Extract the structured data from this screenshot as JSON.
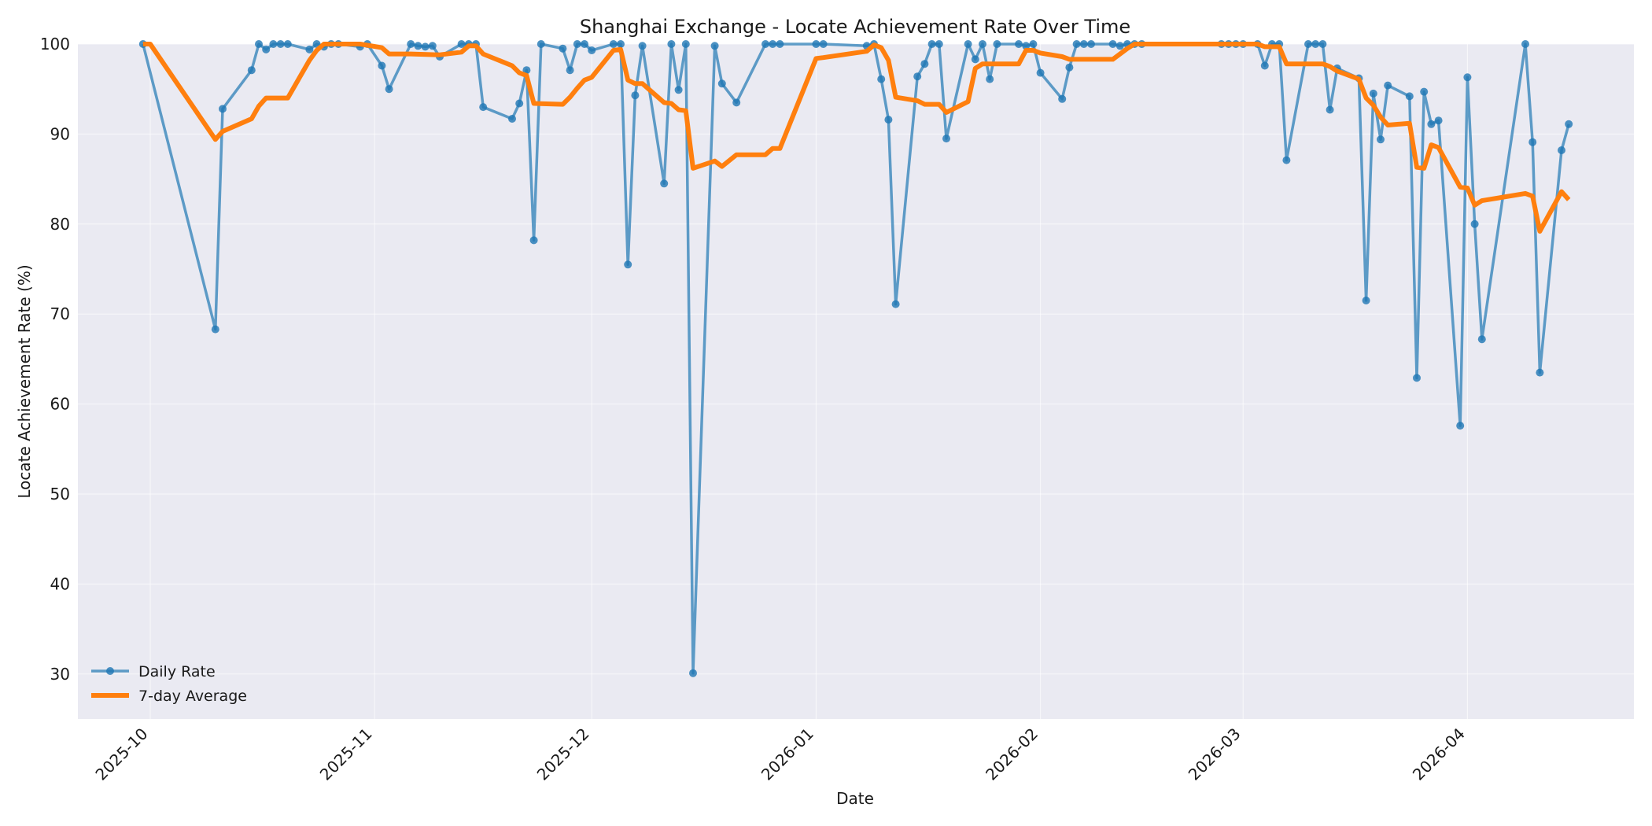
{
  "chart_data": {
    "type": "line",
    "title": "Shanghai Exchange - Locate Achievement Rate Over Time",
    "xlabel": "Date",
    "ylabel": "Locate Achievement Rate (%)",
    "xlim": [
      "2025-09-21",
      "2026-04-24"
    ],
    "ylim": [
      25,
      100
    ],
    "yticks": [
      30,
      40,
      50,
      60,
      70,
      80,
      90,
      100
    ],
    "xticks": [
      "2025-10-01",
      "2025-11-01",
      "2025-12-01",
      "2026-01-01",
      "2026-02-01",
      "2026-03-01",
      "2026-04-01"
    ],
    "xtick_labels": [
      "2025-10",
      "2025-11",
      "2025-12",
      "2026-01",
      "2026-02",
      "2026-03",
      "2026-04"
    ],
    "grid": true,
    "legend": "lower-left",
    "colors": {
      "daily": "#1f77b4",
      "avg": "#ff7f0e",
      "plot_bg": "#eaeaf2"
    },
    "series": [
      {
        "name": "Daily Rate",
        "marker": "circle",
        "points": [
          [
            "2025-09-30",
            100
          ],
          [
            "2025-10-10",
            68.3
          ],
          [
            "2025-10-11",
            92.8
          ],
          [
            "2025-10-15",
            97.1
          ],
          [
            "2025-10-16",
            100
          ],
          [
            "2025-10-17",
            99.4
          ],
          [
            "2025-10-18",
            100
          ],
          [
            "2025-10-19",
            100
          ],
          [
            "2025-10-20",
            100
          ],
          [
            "2025-10-23",
            99.4
          ],
          [
            "2025-10-24",
            100
          ],
          [
            "2025-10-25",
            99.7
          ],
          [
            "2025-10-26",
            100
          ],
          [
            "2025-10-27",
            100
          ],
          [
            "2025-10-30",
            99.7
          ],
          [
            "2025-10-31",
            100
          ],
          [
            "2025-11-02",
            97.6
          ],
          [
            "2025-11-03",
            95.0
          ],
          [
            "2025-11-06",
            100
          ],
          [
            "2025-11-07",
            99.8
          ],
          [
            "2025-11-08",
            99.7
          ],
          [
            "2025-11-09",
            99.8
          ],
          [
            "2025-11-10",
            98.6
          ],
          [
            "2025-11-13",
            100
          ],
          [
            "2025-11-14",
            100
          ],
          [
            "2025-11-15",
            100
          ],
          [
            "2025-11-16",
            93.0
          ],
          [
            "2025-11-20",
            91.7
          ],
          [
            "2025-11-21",
            93.4
          ],
          [
            "2025-11-22",
            97.1
          ],
          [
            "2025-11-23",
            78.2
          ],
          [
            "2025-11-24",
            100
          ],
          [
            "2025-11-27",
            99.5
          ],
          [
            "2025-11-28",
            97.1
          ],
          [
            "2025-11-29",
            100
          ],
          [
            "2025-11-30",
            100
          ],
          [
            "2025-12-01",
            99.3
          ],
          [
            "2025-12-04",
            100
          ],
          [
            "2025-12-05",
            100
          ],
          [
            "2025-12-06",
            75.5
          ],
          [
            "2025-12-07",
            94.3
          ],
          [
            "2025-12-08",
            99.8
          ],
          [
            "2025-12-11",
            84.5
          ],
          [
            "2025-12-12",
            100
          ],
          [
            "2025-12-13",
            94.9
          ],
          [
            "2025-12-14",
            100
          ],
          [
            "2025-12-15",
            30.1
          ],
          [
            "2025-12-18",
            99.8
          ],
          [
            "2025-12-19",
            95.6
          ],
          [
            "2025-12-21",
            93.5
          ],
          [
            "2025-12-25",
            100
          ],
          [
            "2025-12-26",
            100
          ],
          [
            "2025-12-27",
            100
          ],
          [
            "2026-01-01",
            100
          ],
          [
            "2026-01-02",
            100
          ],
          [
            "2026-01-08",
            99.8
          ],
          [
            "2026-01-09",
            100
          ],
          [
            "2026-01-10",
            96.1
          ],
          [
            "2026-01-11",
            91.6
          ],
          [
            "2026-01-12",
            71.1
          ],
          [
            "2026-01-15",
            96.4
          ],
          [
            "2026-01-16",
            97.8
          ],
          [
            "2026-01-17",
            100
          ],
          [
            "2026-01-18",
            100
          ],
          [
            "2026-01-19",
            89.5
          ],
          [
            "2026-01-22",
            100
          ],
          [
            "2026-01-23",
            98.3
          ],
          [
            "2026-01-24",
            100
          ],
          [
            "2026-01-25",
            96.1
          ],
          [
            "2026-01-26",
            100
          ],
          [
            "2026-01-29",
            100
          ],
          [
            "2026-01-30",
            99.8
          ],
          [
            "2026-01-31",
            100
          ],
          [
            "2026-02-01",
            96.8
          ],
          [
            "2026-02-04",
            93.9
          ],
          [
            "2026-02-05",
            97.4
          ],
          [
            "2026-02-06",
            100
          ],
          [
            "2026-02-07",
            100
          ],
          [
            "2026-02-08",
            100
          ],
          [
            "2026-02-11",
            100
          ],
          [
            "2026-02-12",
            99.8
          ],
          [
            "2026-02-13",
            100
          ],
          [
            "2026-02-14",
            100
          ],
          [
            "2026-02-15",
            100
          ],
          [
            "2026-02-26",
            100
          ],
          [
            "2026-02-27",
            100
          ],
          [
            "2026-02-28",
            100
          ],
          [
            "2026-03-01",
            100
          ],
          [
            "2026-03-03",
            100
          ],
          [
            "2026-03-04",
            97.6
          ],
          [
            "2026-03-05",
            100
          ],
          [
            "2026-03-06",
            100
          ],
          [
            "2026-03-07",
            87.1
          ],
          [
            "2026-03-10",
            100
          ],
          [
            "2026-03-11",
            100
          ],
          [
            "2026-03-12",
            100
          ],
          [
            "2026-03-13",
            92.7
          ],
          [
            "2026-03-14",
            97.3
          ],
          [
            "2026-03-17",
            96.2
          ],
          [
            "2026-03-18",
            71.5
          ],
          [
            "2026-03-19",
            94.5
          ],
          [
            "2026-03-20",
            89.4
          ],
          [
            "2026-03-21",
            95.4
          ],
          [
            "2026-03-24",
            94.2
          ],
          [
            "2026-03-25",
            62.9
          ],
          [
            "2026-03-26",
            94.7
          ],
          [
            "2026-03-27",
            91.1
          ],
          [
            "2026-03-28",
            91.5
          ],
          [
            "2026-03-31",
            57.6
          ],
          [
            "2026-04-01",
            96.3
          ],
          [
            "2026-04-02",
            80.0
          ],
          [
            "2026-04-03",
            67.2
          ],
          [
            "2026-04-09",
            100
          ],
          [
            "2026-04-10",
            89.1
          ],
          [
            "2026-04-11",
            63.5
          ],
          [
            "2026-04-14",
            88.2
          ],
          [
            "2026-04-15",
            91.1
          ]
        ]
      },
      {
        "name": "7-day Average",
        "points": [
          [
            "2025-09-30",
            100
          ],
          [
            "2025-10-01",
            100
          ],
          [
            "2025-10-10",
            89.4
          ],
          [
            "2025-10-11",
            90.3
          ],
          [
            "2025-10-15",
            91.7
          ],
          [
            "2025-10-16",
            93.1
          ],
          [
            "2025-10-17",
            94.0
          ],
          [
            "2025-10-19",
            94.0
          ],
          [
            "2025-10-20",
            94.0
          ],
          [
            "2025-10-23",
            98.2
          ],
          [
            "2025-10-24",
            99.3
          ],
          [
            "2025-10-25",
            100
          ],
          [
            "2025-10-30",
            100
          ],
          [
            "2025-11-02",
            99.6
          ],
          [
            "2025-11-03",
            98.9
          ],
          [
            "2025-11-06",
            98.9
          ],
          [
            "2025-11-10",
            98.8
          ],
          [
            "2025-11-13",
            99.1
          ],
          [
            "2025-11-14",
            99.8
          ],
          [
            "2025-11-15",
            99.8
          ],
          [
            "2025-11-16",
            98.9
          ],
          [
            "2025-11-20",
            97.6
          ],
          [
            "2025-11-21",
            96.8
          ],
          [
            "2025-11-22",
            96.5
          ],
          [
            "2025-11-23",
            93.4
          ],
          [
            "2025-11-27",
            93.3
          ],
          [
            "2025-11-28",
            94.1
          ],
          [
            "2025-11-29",
            95.1
          ],
          [
            "2025-11-30",
            96.0
          ],
          [
            "2025-12-01",
            96.3
          ],
          [
            "2025-12-04",
            99.3
          ],
          [
            "2025-12-05",
            99.4
          ],
          [
            "2025-12-06",
            96.0
          ],
          [
            "2025-12-07",
            95.6
          ],
          [
            "2025-12-08",
            95.6
          ],
          [
            "2025-12-11",
            93.5
          ],
          [
            "2025-12-12",
            93.4
          ],
          [
            "2025-12-13",
            92.7
          ],
          [
            "2025-12-14",
            92.6
          ],
          [
            "2025-12-15",
            86.2
          ],
          [
            "2025-12-18",
            87.0
          ],
          [
            "2025-12-19",
            86.4
          ],
          [
            "2025-12-21",
            87.7
          ],
          [
            "2025-12-25",
            87.7
          ],
          [
            "2025-12-26",
            88.4
          ],
          [
            "2025-12-27",
            88.4
          ],
          [
            "2026-01-01",
            98.4
          ],
          [
            "2026-01-02",
            98.5
          ],
          [
            "2026-01-08",
            99.2
          ],
          [
            "2026-01-09",
            99.9
          ],
          [
            "2026-01-10",
            99.6
          ],
          [
            "2026-01-11",
            98.2
          ],
          [
            "2026-01-12",
            94.1
          ],
          [
            "2026-01-15",
            93.7
          ],
          [
            "2026-01-16",
            93.3
          ],
          [
            "2026-01-17",
            93.3
          ],
          [
            "2026-01-18",
            93.3
          ],
          [
            "2026-01-19",
            92.4
          ],
          [
            "2026-01-22",
            93.6
          ],
          [
            "2026-01-23",
            97.3
          ],
          [
            "2026-01-24",
            97.8
          ],
          [
            "2026-01-25",
            97.8
          ],
          [
            "2026-01-29",
            97.8
          ],
          [
            "2026-01-30",
            99.3
          ],
          [
            "2026-01-31",
            99.3
          ],
          [
            "2026-02-01",
            99.0
          ],
          [
            "2026-02-04",
            98.6
          ],
          [
            "2026-02-05",
            98.3
          ],
          [
            "2026-02-06",
            98.3
          ],
          [
            "2026-02-11",
            98.3
          ],
          [
            "2026-02-12",
            98.9
          ],
          [
            "2026-02-13",
            99.5
          ],
          [
            "2026-02-14",
            100
          ],
          [
            "2026-03-03",
            100
          ],
          [
            "2026-03-04",
            99.7
          ],
          [
            "2026-03-06",
            99.7
          ],
          [
            "2026-03-07",
            97.8
          ],
          [
            "2026-03-12",
            97.8
          ],
          [
            "2026-03-13",
            97.5
          ],
          [
            "2026-03-14",
            97.0
          ],
          [
            "2026-03-17",
            96.1
          ],
          [
            "2026-03-18",
            94.0
          ],
          [
            "2026-03-19",
            93.2
          ],
          [
            "2026-03-20",
            91.9
          ],
          [
            "2026-03-21",
            91.0
          ],
          [
            "2026-03-24",
            91.2
          ],
          [
            "2026-03-25",
            86.3
          ],
          [
            "2026-03-26",
            86.2
          ],
          [
            "2026-03-27",
            88.8
          ],
          [
            "2026-03-28",
            88.5
          ],
          [
            "2026-03-31",
            84.1
          ],
          [
            "2026-04-01",
            84.0
          ],
          [
            "2026-04-02",
            82.1
          ],
          [
            "2026-04-03",
            82.6
          ],
          [
            "2026-04-09",
            83.4
          ],
          [
            "2026-04-10",
            83.1
          ],
          [
            "2026-04-11",
            79.2
          ],
          [
            "2026-04-14",
            83.6
          ],
          [
            "2026-04-15",
            82.7
          ]
        ]
      }
    ]
  }
}
